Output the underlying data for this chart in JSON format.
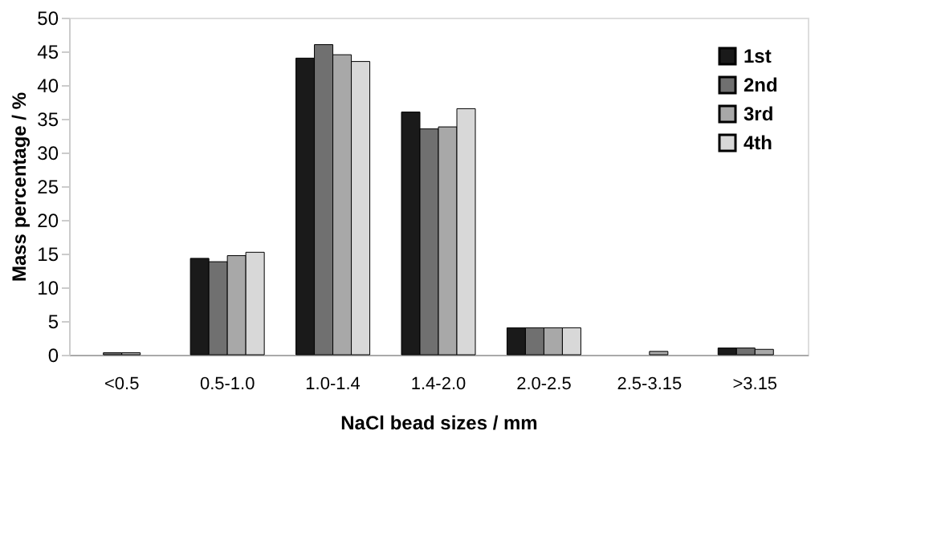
{
  "chart_data": {
    "type": "bar",
    "xlabel": "NaCl bead sizes / mm",
    "ylabel": "Mass percentage / %",
    "categories": [
      "<0.5",
      "0.5-1.0",
      "1.0-1.4",
      "1.4-2.0",
      "2.0-2.5",
      "2.5-3.15",
      ">3.15"
    ],
    "series": [
      {
        "name": "1st",
        "color": "#1a1a1a",
        "values": [
          null,
          14.3,
          44,
          36,
          4,
          null,
          1
        ]
      },
      {
        "name": "2nd",
        "color": "#707070",
        "values": [
          0.3,
          13.8,
          46,
          33.5,
          4,
          null,
          1
        ]
      },
      {
        "name": "3rd",
        "color": "#a8a8a8",
        "values": [
          0.3,
          14.7,
          44.5,
          33.8,
          4,
          0.5,
          0.8
        ]
      },
      {
        "name": "4th",
        "color": "#d8d8d8",
        "values": [
          null,
          15.2,
          43.5,
          36.5,
          4,
          null,
          null
        ]
      }
    ],
    "ylim": [
      0,
      50
    ],
    "yticks": [
      0,
      5,
      10,
      15,
      20,
      25,
      30,
      35,
      40,
      45,
      50
    ],
    "grid": false,
    "legend": "top right"
  }
}
